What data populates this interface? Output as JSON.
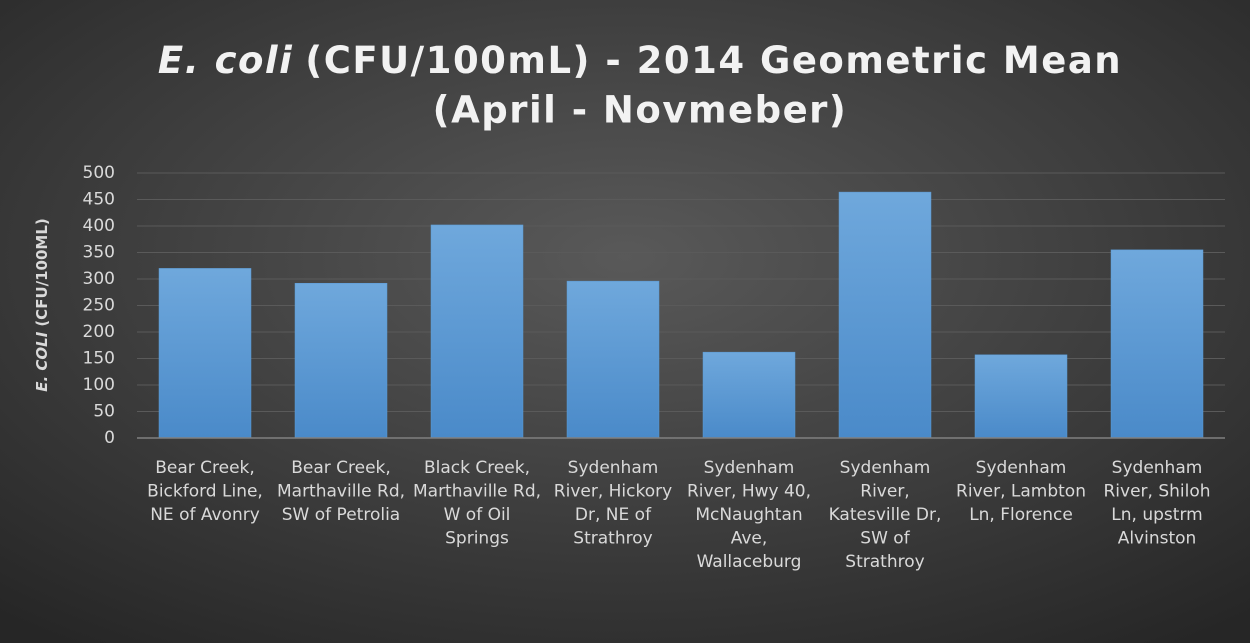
{
  "chart_data": {
    "type": "bar",
    "title": {
      "italic": "E. coli",
      "rest": "(CFU/100mL) - 2014 Geometric Mean",
      "line2": "(April - Novmeber)"
    },
    "y_label": {
      "italic": "E. COLI",
      "rest": "(CFU/100ML)"
    },
    "categories": [
      "Bear Creek, Bickford Line, NE of Avonry",
      "Bear Creek, Marthaville Rd, SW of Petrolia",
      "Black Creek, Marthaville Rd, W of Oil Springs",
      "Sydenham River, Hickory Dr, NE of Strathroy",
      "Sydenham River, Hwy 40, McNaughtan Ave, Wallaceburg",
      "Sydenham River, Katesville Dr, SW of Strathroy",
      "Sydenham River, Lambton Ln, Florence",
      "Sydenham River, Shiloh Ln, upstrm Alvinston"
    ],
    "values": [
      320,
      292,
      402,
      296,
      162,
      464,
      157,
      355
    ],
    "color": "#5b9bd5",
    "ylim": [
      0,
      500
    ],
    "yticks": [
      0,
      50,
      100,
      150,
      200,
      250,
      300,
      350,
      400,
      450,
      500
    ],
    "grid": true
  }
}
